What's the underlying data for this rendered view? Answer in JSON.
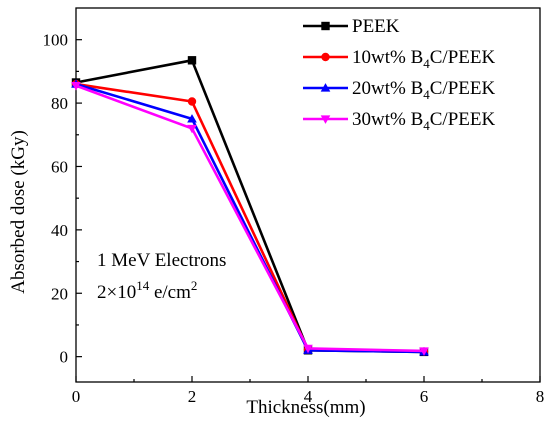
{
  "chart_data": {
    "type": "line",
    "title": "",
    "xlabel": "Thickness(mm)",
    "ylabel": "Absorbed dose (kGy)",
    "xlim": [
      0,
      8
    ],
    "ylim": [
      -8,
      110
    ],
    "xticks": [
      0,
      2,
      4,
      6,
      8
    ],
    "yticks": [
      0,
      20,
      40,
      60,
      80,
      100
    ],
    "grid": false,
    "legend_position": "top-right",
    "annotation": {
      "line1": "1 MeV Electrons",
      "line2_base": "2×10",
      "line2_sup": "14",
      "line2_mid": " e/cm",
      "line2_sup2": "2"
    },
    "series": [
      {
        "name": "PEEK",
        "legend": {
          "pre": "PEEK",
          "sub": "",
          "post": ""
        },
        "color": "#000000",
        "marker": "square",
        "x": [
          0,
          2,
          4,
          6
        ],
        "y": [
          86.5,
          93.5,
          2.0,
          1.5
        ]
      },
      {
        "name": "10wt% B4C/PEEK",
        "legend": {
          "pre": "10wt% B",
          "sub": "4",
          "post": "C/PEEK"
        },
        "color": "#ff0000",
        "marker": "circle",
        "x": [
          0,
          2,
          4,
          6
        ],
        "y": [
          86.0,
          80.5,
          2.2,
          1.6
        ]
      },
      {
        "name": "20wt% B4C/PEEK",
        "legend": {
          "pre": "20wt% B",
          "sub": "4",
          "post": "C/PEEK"
        },
        "color": "#0000ff",
        "marker": "triangle-up",
        "x": [
          0,
          2,
          4,
          6
        ],
        "y": [
          86.0,
          75.0,
          2.0,
          1.5
        ]
      },
      {
        "name": "30wt% B4C/PEEK",
        "legend": {
          "pre": "30wt% B",
          "sub": "4",
          "post": "C/PEEK"
        },
        "color": "#ff00ff",
        "marker": "triangle-down",
        "x": [
          0,
          2,
          4,
          6
        ],
        "y": [
          85.5,
          72.0,
          2.6,
          1.8
        ]
      }
    ]
  }
}
